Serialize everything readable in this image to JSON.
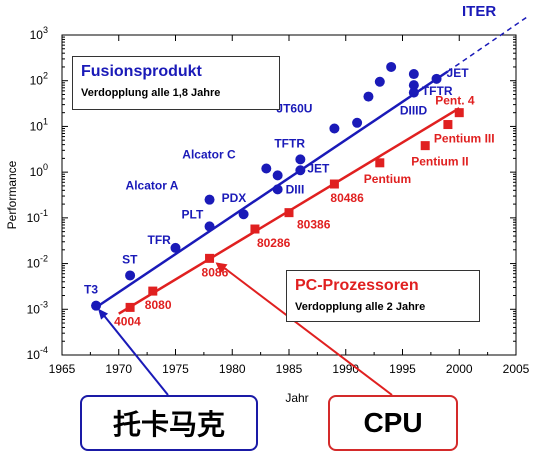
{
  "colors": {
    "fusion": "#1a1ab8",
    "pc": "#e02020",
    "axis": "#000000",
    "grid": "#cccccc"
  },
  "legend_fusion": {
    "title": "Fusionsprodukt",
    "subtitle": "Verdopplung alle 1,8 Jahre"
  },
  "legend_pc": {
    "title": "PC-Prozessoren",
    "subtitle": "Verdopplung alle 2 Jahre"
  },
  "callouts": {
    "tokamak": "托卡马克",
    "cpu": "CPU"
  },
  "chart_data": {
    "type": "scatter",
    "xlabel": "Jahr",
    "ylabel": "Performance",
    "xlim": [
      1965,
      2005
    ],
    "ylim_log10": [
      -4,
      3
    ],
    "y_scale": "log",
    "x_ticks": [
      "1965",
      "1970",
      "1975",
      "1980",
      "1985",
      "1990",
      "1995",
      "2000",
      "2005"
    ],
    "y_ticks": [
      {
        "base": "10",
        "exp": "-4"
      },
      {
        "base": "10",
        "exp": "-3"
      },
      {
        "base": "10",
        "exp": "-2"
      },
      {
        "base": "10",
        "exp": "-1"
      },
      {
        "base": "10",
        "exp": "0"
      },
      {
        "base": "10",
        "exp": "1"
      },
      {
        "base": "10",
        "exp": "2"
      },
      {
        "base": "10",
        "exp": "3"
      }
    ],
    "grid": false,
    "series": [
      {
        "points": [
          {
            "x": 1968,
            "y": 0.0012,
            "label": "T3"
          },
          {
            "x": 1971,
            "y": 0.0055,
            "label": "ST"
          },
          {
            "x": 1975,
            "y": 0.022,
            "label": "TFR"
          },
          {
            "x": 1978,
            "y": 0.065,
            "label": "PLT"
          },
          {
            "x": 1978,
            "y": 0.25,
            "label": "Alcator A"
          },
          {
            "x": 1981,
            "y": 0.12,
            "label": "PDX"
          },
          {
            "x": 1983,
            "y": 1.2,
            "label": "Alcator C"
          },
          {
            "x": 1984,
            "y": 0.85,
            "label": ""
          },
          {
            "x": 1984,
            "y": 0.42,
            "label": "DIII"
          },
          {
            "x": 1986,
            "y": 1.9,
            "label": "TFTR"
          },
          {
            "x": 1986,
            "y": 1.1,
            "label": "JET"
          },
          {
            "x": 1989,
            "y": 9,
            "label": "JT60U"
          },
          {
            "x": 1991,
            "y": 12,
            "label": ""
          },
          {
            "x": 1992,
            "y": 45,
            "label": ""
          },
          {
            "x": 1993,
            "y": 95,
            "label": "JT60U"
          },
          {
            "x": 1994,
            "y": 200,
            "label": ""
          },
          {
            "x": 1996,
            "y": 140,
            "label": ""
          },
          {
            "x": 1996,
            "y": 80,
            "label": "TFTR"
          },
          {
            "x": 1996,
            "y": 55,
            "label": "DIIID"
          },
          {
            "x": 1998,
            "y": 110,
            "label": "JET"
          }
        ],
        "fit": {
          "x0": 1968,
          "y0": 0.0011,
          "x1": 1999,
          "y1": 160
        },
        "extrapolation": {
          "x0": 1999,
          "y0": 160,
          "x1": 2006,
          "y1": 2500,
          "label": "ITER"
        }
      },
      {
        "points": [
          {
            "x": 1971,
            "y": 0.0011,
            "label": "4004"
          },
          {
            "x": 1973,
            "y": 0.0025,
            "label": "8080"
          },
          {
            "x": 1978,
            "y": 0.013,
            "label": "8086"
          },
          {
            "x": 1982,
            "y": 0.057,
            "label": "80286"
          },
          {
            "x": 1985,
            "y": 0.13,
            "label": "80386"
          },
          {
            "x": 1989,
            "y": 0.55,
            "label": "80486"
          },
          {
            "x": 1993,
            "y": 1.6,
            "label": "Pentium"
          },
          {
            "x": 1997,
            "y": 3.8,
            "label": "Pentium II"
          },
          {
            "x": 1999,
            "y": 11,
            "label": "Pentium III"
          },
          {
            "x": 2000,
            "y": 20,
            "label": "Pent. 4"
          }
        ],
        "fit": {
          "x0": 1970,
          "y0": 0.0008,
          "x1": 2000,
          "y1": 25
        }
      }
    ]
  }
}
